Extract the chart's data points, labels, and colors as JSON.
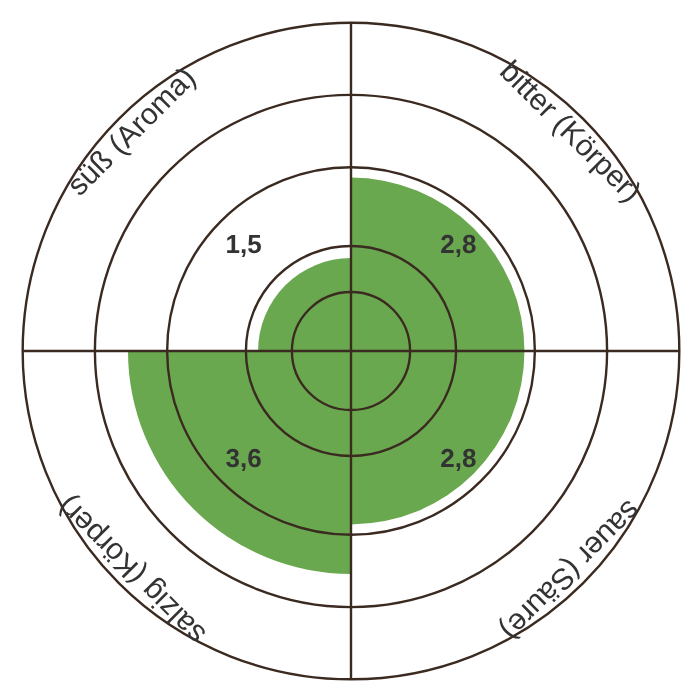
{
  "chart_data": {
    "type": "other",
    "categories": [
      "süß (Aroma)",
      "bitter (Körper)",
      "sauer (Säure)",
      "salzig (Körper)"
    ],
    "values": [
      1.5,
      2.8,
      2.8,
      3.6
    ],
    "color": "#6aa84f",
    "value_labels": [
      "1,5",
      "2,8",
      "2,8",
      "3,6"
    ]
  }
}
